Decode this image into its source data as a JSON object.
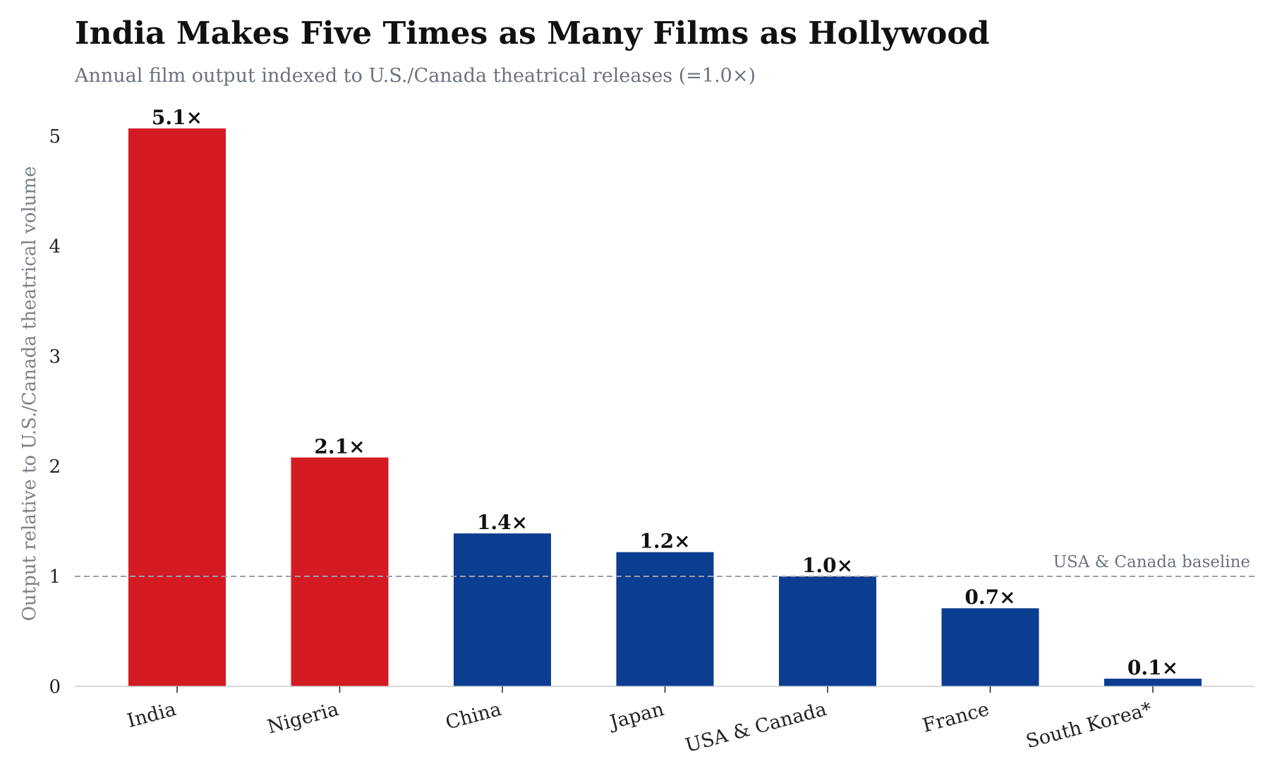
{
  "chart_data": {
    "type": "bar",
    "title": "India Makes Five Times as Many Films as Hollywood",
    "subtitle": "Annual film output indexed to U.S./Canada theatrical releases (=1.0×)",
    "ylabel": "Output relative to U.S./Canada theatrical volume",
    "xlabel": "",
    "ylim": [
      0,
      5.2
    ],
    "yticks": [
      0,
      1,
      2,
      3,
      4,
      5
    ],
    "categories": [
      "India",
      "Nigeria",
      "China",
      "Japan",
      "USA & Canada",
      "France",
      "South Korea*"
    ],
    "values": [
      5.07,
      2.08,
      1.39,
      1.22,
      1.0,
      0.71,
      0.07
    ],
    "value_labels": [
      "5.1×",
      "2.1×",
      "1.4×",
      "1.2×",
      "1.0×",
      "0.7×",
      "0.1×"
    ],
    "bar_colors": [
      "#d41a22",
      "#d41a22",
      "#0b3d91",
      "#0b3d91",
      "#0b3d91",
      "#0b3d91",
      "#0b3d91"
    ],
    "reference_line": {
      "value": 1.0,
      "label": "USA & Canada baseline",
      "style": "dashed",
      "color": "#9aa0a8"
    },
    "grid": false,
    "legend": "none"
  }
}
